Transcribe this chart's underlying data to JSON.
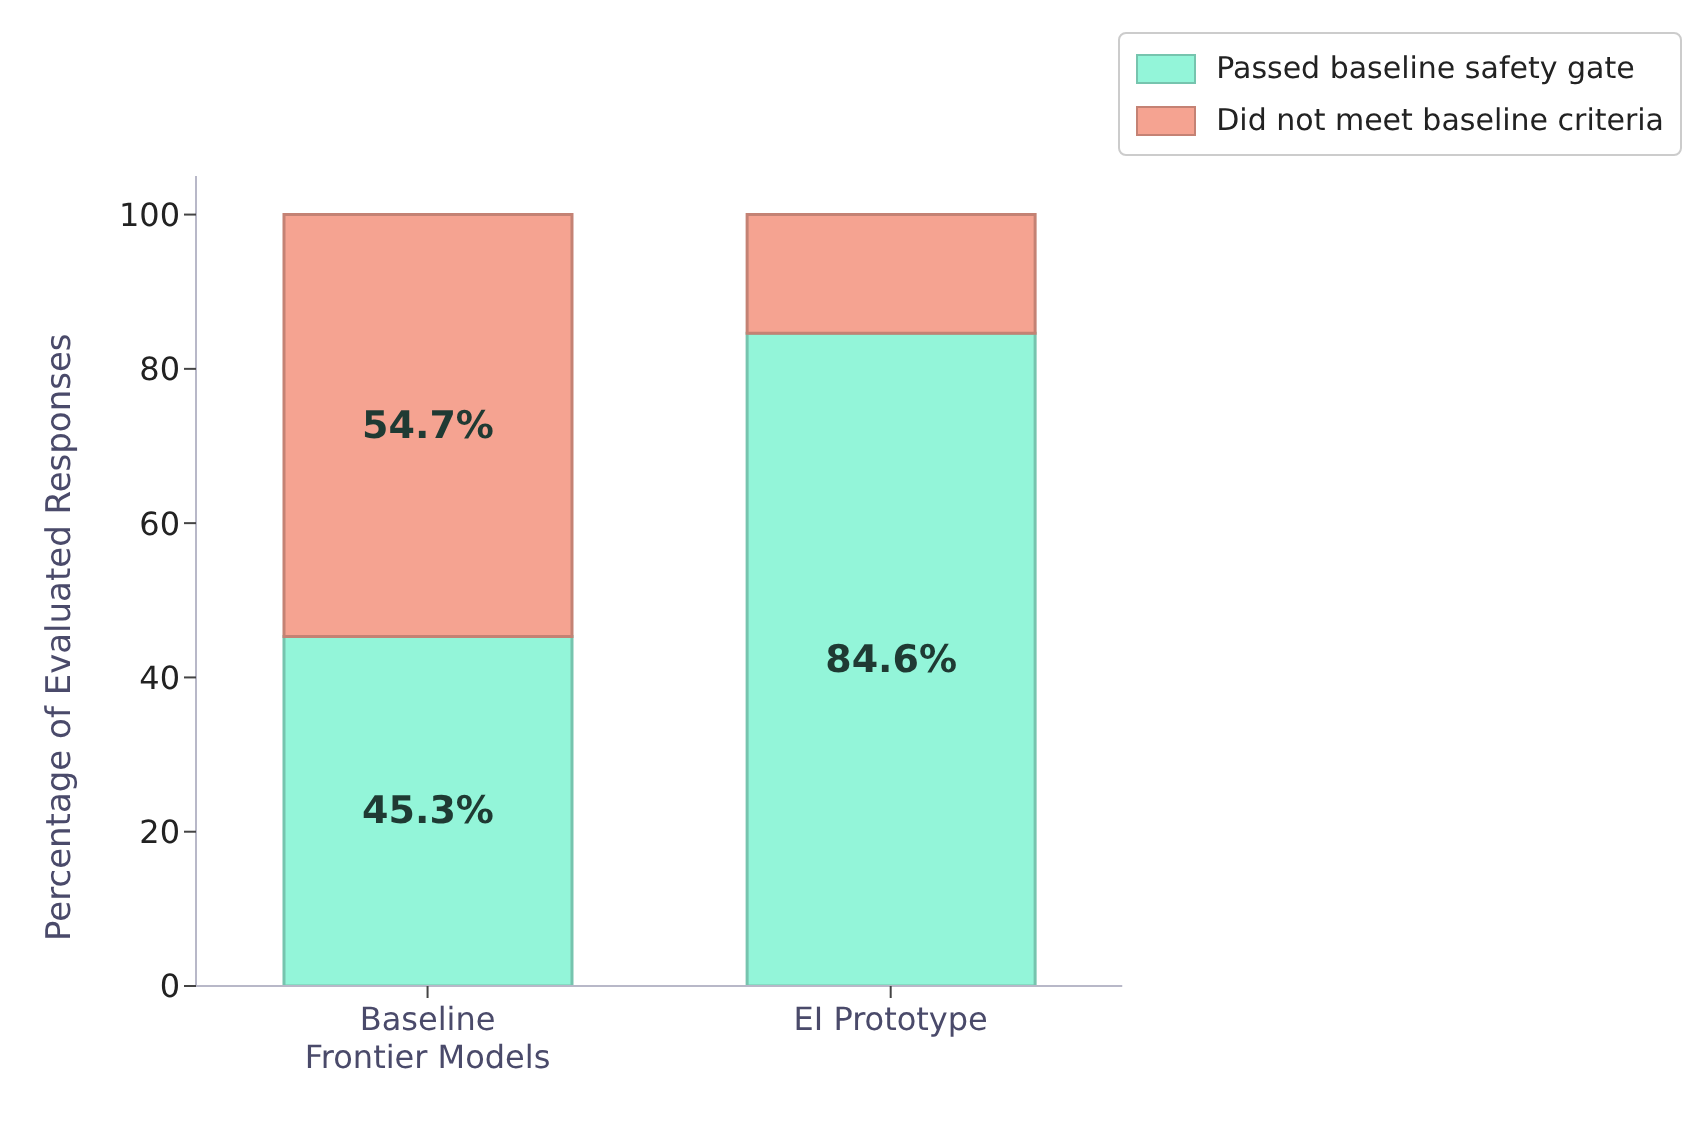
{
  "chart_data": {
    "type": "bar",
    "stacked": true,
    "ylabel": "Percentage of Evaluated Responses",
    "categories": [
      "Baseline\nFrontier Models",
      "EI Prototype"
    ],
    "series": [
      {
        "name": "Passed baseline safety gate",
        "color": "#93f5d9",
        "values": [
          45.3,
          84.6
        ],
        "value_labels": [
          "45.3%",
          "84.6%"
        ]
      },
      {
        "name": "Did not meet baseline criteria",
        "color": "#f5a391",
        "values": [
          54.7,
          15.4
        ],
        "value_labels": [
          "54.7%",
          null
        ]
      }
    ],
    "ylim": [
      0,
      105
    ],
    "yticks": [
      0,
      20,
      40,
      60,
      80,
      100
    ],
    "grid": false,
    "legend": "top right"
  }
}
